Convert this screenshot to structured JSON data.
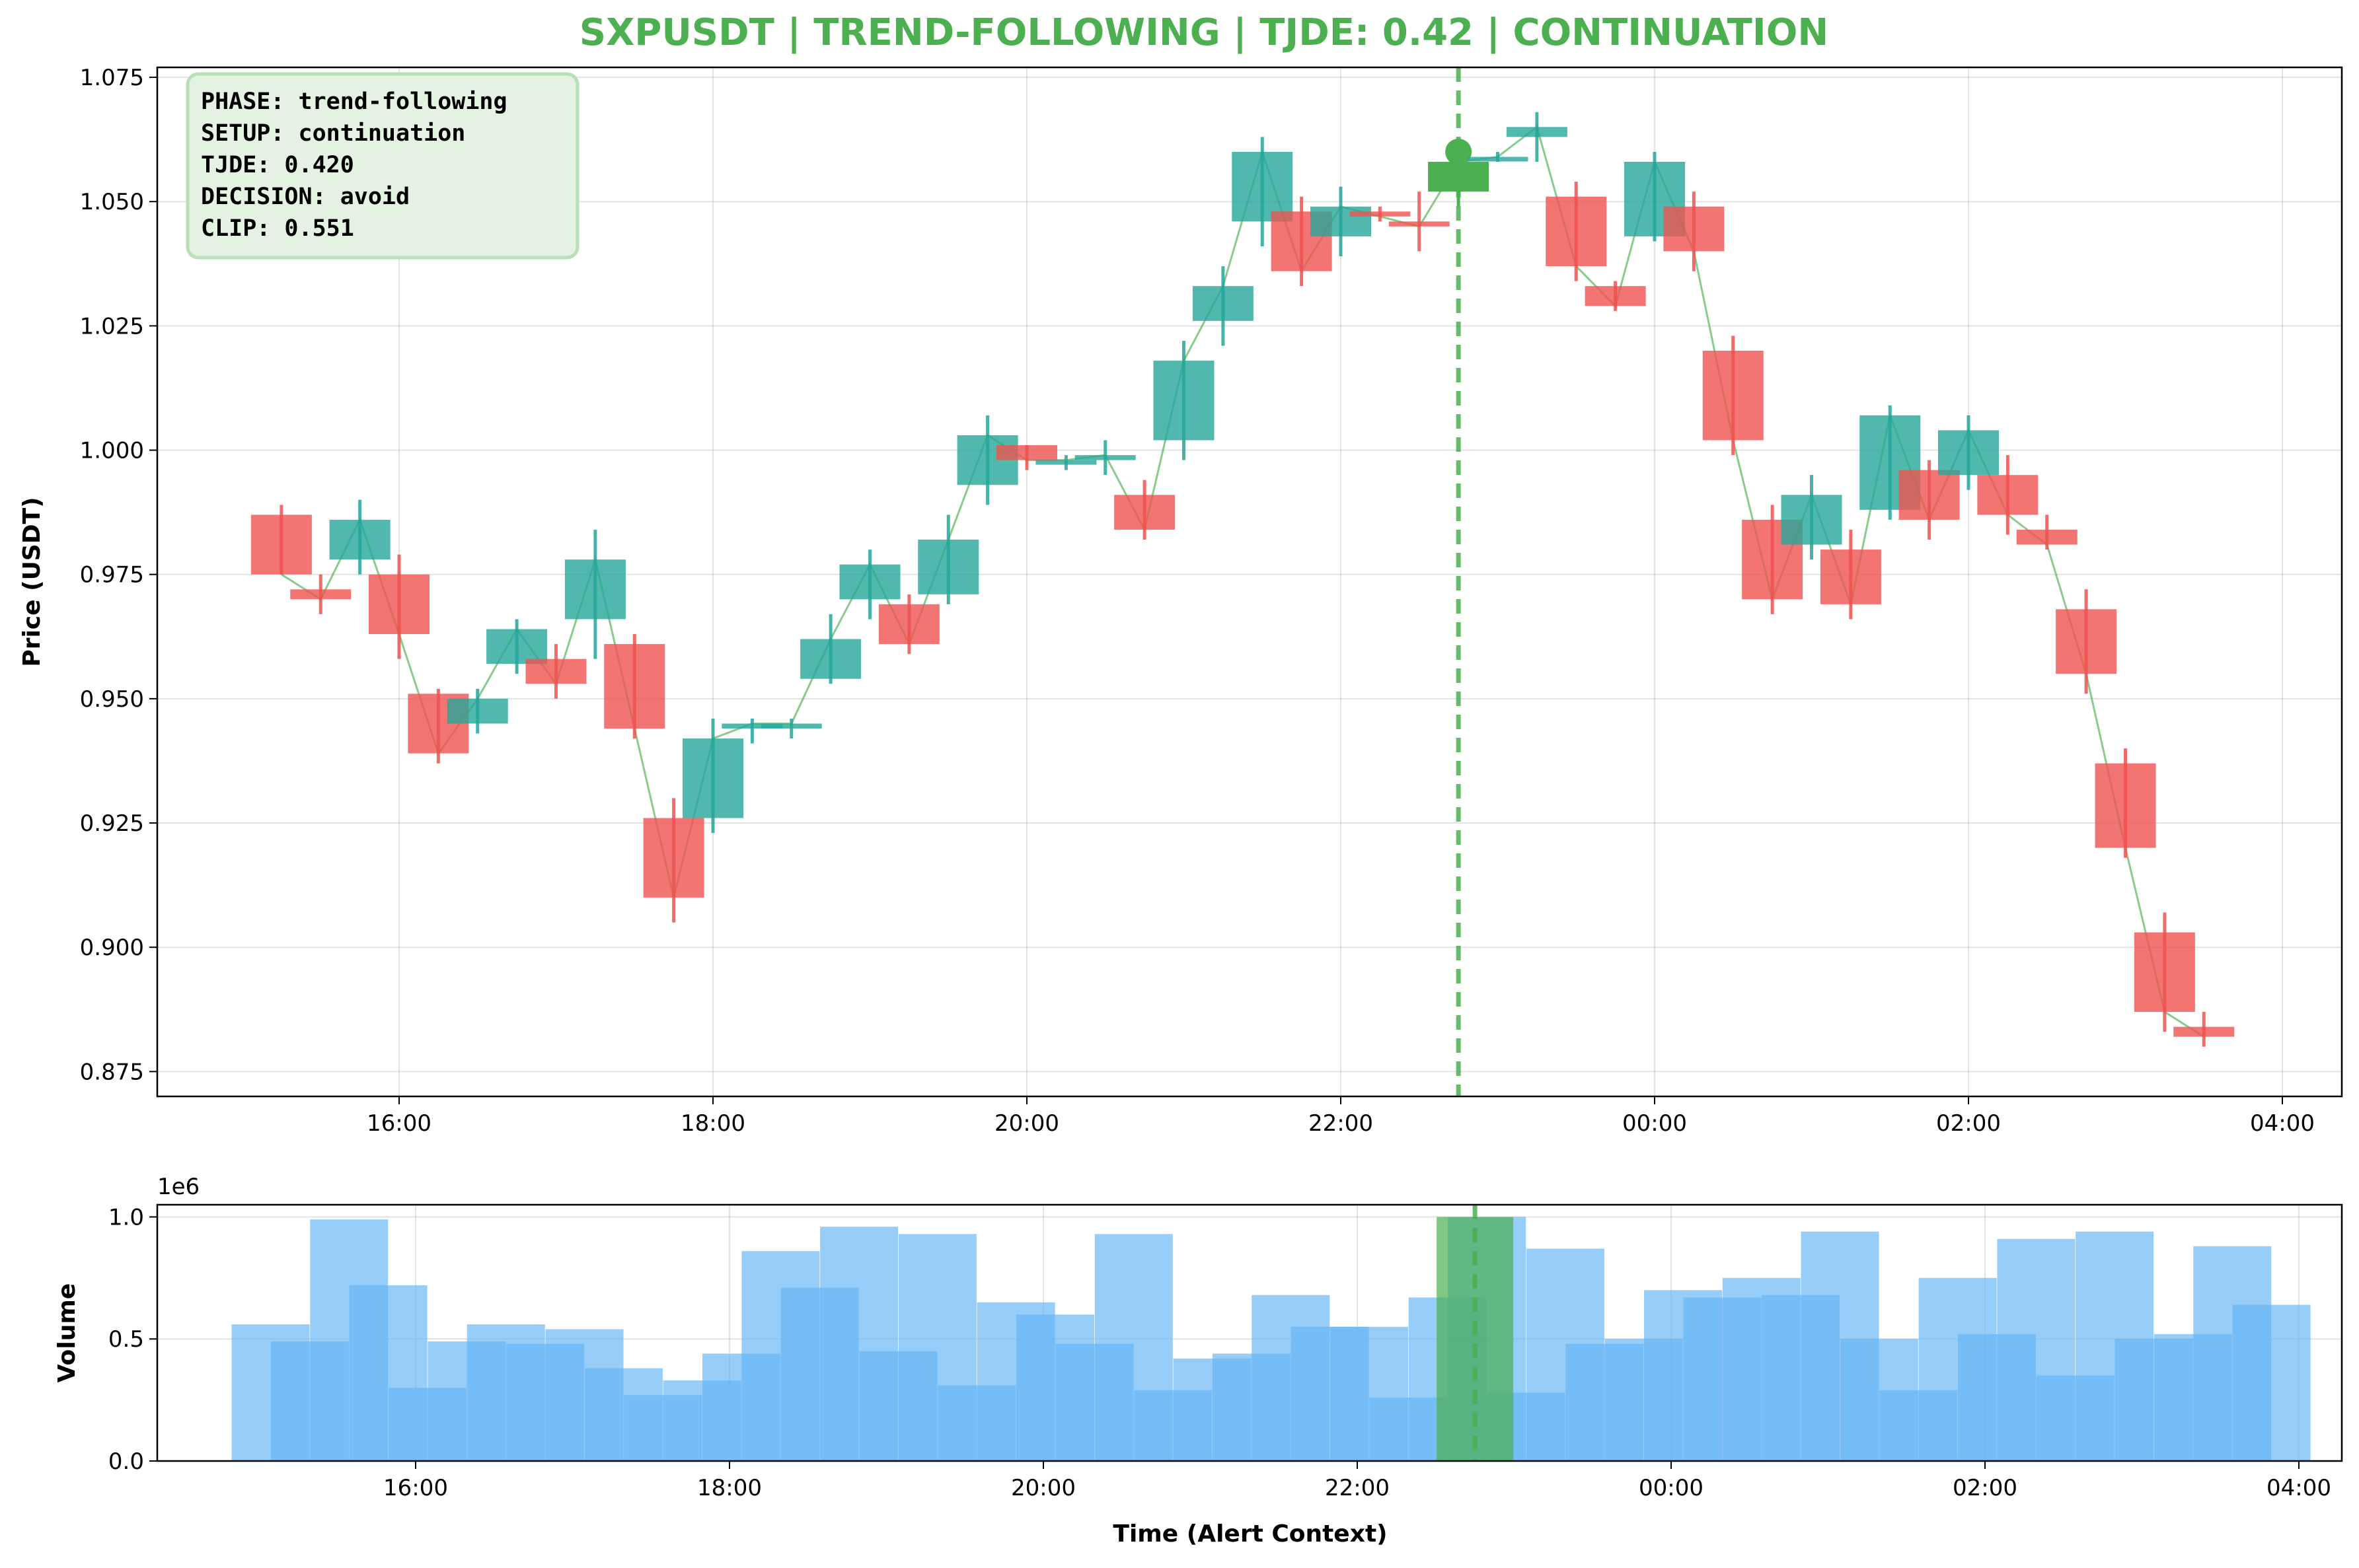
{
  "colors": {
    "up": "#26a69a",
    "down": "#ef5350",
    "accent": "#4caf50",
    "volume": "#64b5f6",
    "info_bg": "#e3f2e1",
    "info_border": "#b9dfb9"
  },
  "chart_data": [
    {
      "type": "candlestick",
      "title": "SXPUSDT | TREND-FOLLOWING | TJDE: 0.42 | CONTINUATION",
      "ylabel": "Price (USDT)",
      "ylim": [
        0.87,
        1.077
      ],
      "yticks": [
        "0.875",
        "0.900",
        "0.925",
        "0.950",
        "0.975",
        "1.000",
        "1.025",
        "1.050",
        "1.075"
      ],
      "xticks": [
        "16:00",
        "18:00",
        "20:00",
        "22:00",
        "00:00",
        "02:00",
        "04:00"
      ],
      "grid": true,
      "alert_time": "22:45",
      "info_box": [
        "PHASE: trend-following",
        "SETUP: continuation",
        "TJDE: 0.420",
        "DECISION: avoid",
        "CLIP: 0.551"
      ],
      "series": [
        {
          "t": "15:15",
          "o": 0.987,
          "h": 0.989,
          "l": 0.975,
          "c": 0.975
        },
        {
          "t": "15:30",
          "o": 0.972,
          "h": 0.975,
          "l": 0.967,
          "c": 0.97
        },
        {
          "t": "15:45",
          "o": 0.978,
          "h": 0.99,
          "l": 0.975,
          "c": 0.986
        },
        {
          "t": "16:00",
          "o": 0.975,
          "h": 0.979,
          "l": 0.958,
          "c": 0.963
        },
        {
          "t": "16:15",
          "o": 0.951,
          "h": 0.952,
          "l": 0.937,
          "c": 0.939
        },
        {
          "t": "16:30",
          "o": 0.945,
          "h": 0.952,
          "l": 0.943,
          "c": 0.95
        },
        {
          "t": "16:45",
          "o": 0.957,
          "h": 0.966,
          "l": 0.955,
          "c": 0.964
        },
        {
          "t": "17:00",
          "o": 0.958,
          "h": 0.961,
          "l": 0.95,
          "c": 0.953
        },
        {
          "t": "17:15",
          "o": 0.966,
          "h": 0.984,
          "l": 0.958,
          "c": 0.978
        },
        {
          "t": "17:30",
          "o": 0.961,
          "h": 0.963,
          "l": 0.942,
          "c": 0.944
        },
        {
          "t": "17:45",
          "o": 0.926,
          "h": 0.93,
          "l": 0.905,
          "c": 0.91
        },
        {
          "t": "18:00",
          "o": 0.926,
          "h": 0.946,
          "l": 0.923,
          "c": 0.942
        },
        {
          "t": "18:15",
          "o": 0.944,
          "h": 0.946,
          "l": 0.941,
          "c": 0.945
        },
        {
          "t": "18:30",
          "o": 0.944,
          "h": 0.946,
          "l": 0.942,
          "c": 0.945
        },
        {
          "t": "18:45",
          "o": 0.954,
          "h": 0.967,
          "l": 0.953,
          "c": 0.962
        },
        {
          "t": "19:00",
          "o": 0.97,
          "h": 0.98,
          "l": 0.966,
          "c": 0.977
        },
        {
          "t": "19:15",
          "o": 0.969,
          "h": 0.971,
          "l": 0.959,
          "c": 0.961
        },
        {
          "t": "19:30",
          "o": 0.971,
          "h": 0.987,
          "l": 0.969,
          "c": 0.982
        },
        {
          "t": "19:45",
          "o": 0.993,
          "h": 1.007,
          "l": 0.989,
          "c": 1.003
        },
        {
          "t": "20:00",
          "o": 1.001,
          "h": 1.001,
          "l": 0.996,
          "c": 0.998
        },
        {
          "t": "20:15",
          "o": 0.998,
          "h": 0.999,
          "l": 0.996,
          "c": 0.998
        },
        {
          "t": "20:30",
          "o": 0.998,
          "h": 1.002,
          "l": 0.995,
          "c": 0.999
        },
        {
          "t": "20:45",
          "o": 0.991,
          "h": 0.994,
          "l": 0.982,
          "c": 0.984
        },
        {
          "t": "21:00",
          "o": 1.002,
          "h": 1.022,
          "l": 0.998,
          "c": 1.018
        },
        {
          "t": "21:15",
          "o": 1.026,
          "h": 1.037,
          "l": 1.021,
          "c": 1.033
        },
        {
          "t": "21:30",
          "o": 1.046,
          "h": 1.063,
          "l": 1.041,
          "c": 1.06
        },
        {
          "t": "21:45",
          "o": 1.048,
          "h": 1.051,
          "l": 1.033,
          "c": 1.036
        },
        {
          "t": "22:00",
          "o": 1.043,
          "h": 1.053,
          "l": 1.039,
          "c": 1.049
        },
        {
          "t": "22:15",
          "o": 1.048,
          "h": 1.049,
          "l": 1.046,
          "c": 1.047
        },
        {
          "t": "22:30",
          "o": 1.046,
          "h": 1.052,
          "l": 1.04,
          "c": 1.045
        },
        {
          "t": "22:45",
          "o": 1.052,
          "h": 1.06,
          "l": 1.049,
          "c": 1.058
        },
        {
          "t": "23:00",
          "o": 1.059,
          "h": 1.06,
          "l": 1.058,
          "c": 1.059
        },
        {
          "t": "23:15",
          "o": 1.063,
          "h": 1.068,
          "l": 1.058,
          "c": 1.065
        },
        {
          "t": "23:30",
          "o": 1.051,
          "h": 1.054,
          "l": 1.034,
          "c": 1.037
        },
        {
          "t": "23:45",
          "o": 1.033,
          "h": 1.034,
          "l": 1.028,
          "c": 1.029
        },
        {
          "t": "00:00",
          "o": 1.043,
          "h": 1.06,
          "l": 1.042,
          "c": 1.058
        },
        {
          "t": "00:15",
          "o": 1.049,
          "h": 1.052,
          "l": 1.036,
          "c": 1.04
        },
        {
          "t": "00:30",
          "o": 1.02,
          "h": 1.023,
          "l": 0.999,
          "c": 1.002
        },
        {
          "t": "00:45",
          "o": 0.986,
          "h": 0.989,
          "l": 0.967,
          "c": 0.97
        },
        {
          "t": "01:00",
          "o": 0.981,
          "h": 0.995,
          "l": 0.978,
          "c": 0.991
        },
        {
          "t": "01:15",
          "o": 0.98,
          "h": 0.984,
          "l": 0.966,
          "c": 0.969
        },
        {
          "t": "01:30",
          "o": 0.988,
          "h": 1.009,
          "l": 0.986,
          "c": 1.007
        },
        {
          "t": "01:45",
          "o": 0.996,
          "h": 0.998,
          "l": 0.982,
          "c": 0.986
        },
        {
          "t": "02:00",
          "o": 0.995,
          "h": 1.007,
          "l": 0.992,
          "c": 1.004
        },
        {
          "t": "02:15",
          "o": 0.995,
          "h": 0.999,
          "l": 0.983,
          "c": 0.987
        },
        {
          "t": "02:30",
          "o": 0.984,
          "h": 0.987,
          "l": 0.98,
          "c": 0.981
        },
        {
          "t": "02:45",
          "o": 0.968,
          "h": 0.972,
          "l": 0.951,
          "c": 0.955
        },
        {
          "t": "03:00",
          "o": 0.937,
          "h": 0.94,
          "l": 0.918,
          "c": 0.92
        },
        {
          "t": "03:15",
          "o": 0.903,
          "h": 0.907,
          "l": 0.883,
          "c": 0.887
        },
        {
          "t": "03:30",
          "o": 0.884,
          "h": 0.887,
          "l": 0.88,
          "c": 0.882
        }
      ]
    },
    {
      "type": "bar",
      "ylabel": "Volume",
      "xlabel": "Time (Alert Context)",
      "y_multiplier_label": "1e6",
      "ylim": [
        0,
        1.05
      ],
      "yticks": [
        "0.0",
        "0.5",
        "1.0"
      ],
      "xticks": [
        "16:00",
        "18:00",
        "20:00",
        "22:00",
        "00:00",
        "02:00",
        "04:00"
      ],
      "grid": true,
      "highlight_time": "22:45",
      "highlight_value": 1.0,
      "series": [
        {
          "name": "",
          "t": [
            "15:00",
            "15:15",
            "15:30",
            "15:45",
            "16:00",
            "16:15",
            "16:30",
            "16:45",
            "17:00",
            "17:15",
            "17:30",
            "17:45",
            "18:00",
            "18:15",
            "18:30",
            "18:45",
            "19:00",
            "19:15",
            "19:30",
            "19:45",
            "20:00",
            "20:15",
            "20:30",
            "20:45",
            "21:00",
            "21:15",
            "21:30",
            "21:45",
            "22:00",
            "22:15",
            "22:30",
            "22:45",
            "23:00",
            "23:15",
            "23:30",
            "23:45",
            "00:00",
            "00:15",
            "00:30",
            "00:45",
            "01:00",
            "01:15",
            "01:30",
            "01:45",
            "02:00",
            "02:15",
            "02:30",
            "02:45",
            "03:00",
            "03:15",
            "03:30",
            "03:45"
          ],
          "values": [
            0.56,
            0.49,
            0.99,
            0.72,
            0.3,
            0.49,
            0.56,
            0.48,
            0.54,
            0.38,
            0.27,
            0.33,
            0.44,
            0.86,
            0.71,
            0.96,
            0.45,
            0.93,
            0.31,
            0.65,
            0.6,
            0.48,
            0.93,
            0.29,
            0.42,
            0.44,
            0.68,
            0.55,
            0.55,
            0.26,
            0.67,
            1.0,
            0.28,
            0.87,
            0.48,
            0.5,
            0.7,
            0.67,
            0.75,
            0.68,
            0.94,
            0.5,
            0.29,
            0.75,
            0.52,
            0.91,
            0.35,
            0.94,
            0.5,
            0.52,
            0.88,
            0.64
          ]
        }
      ]
    }
  ]
}
